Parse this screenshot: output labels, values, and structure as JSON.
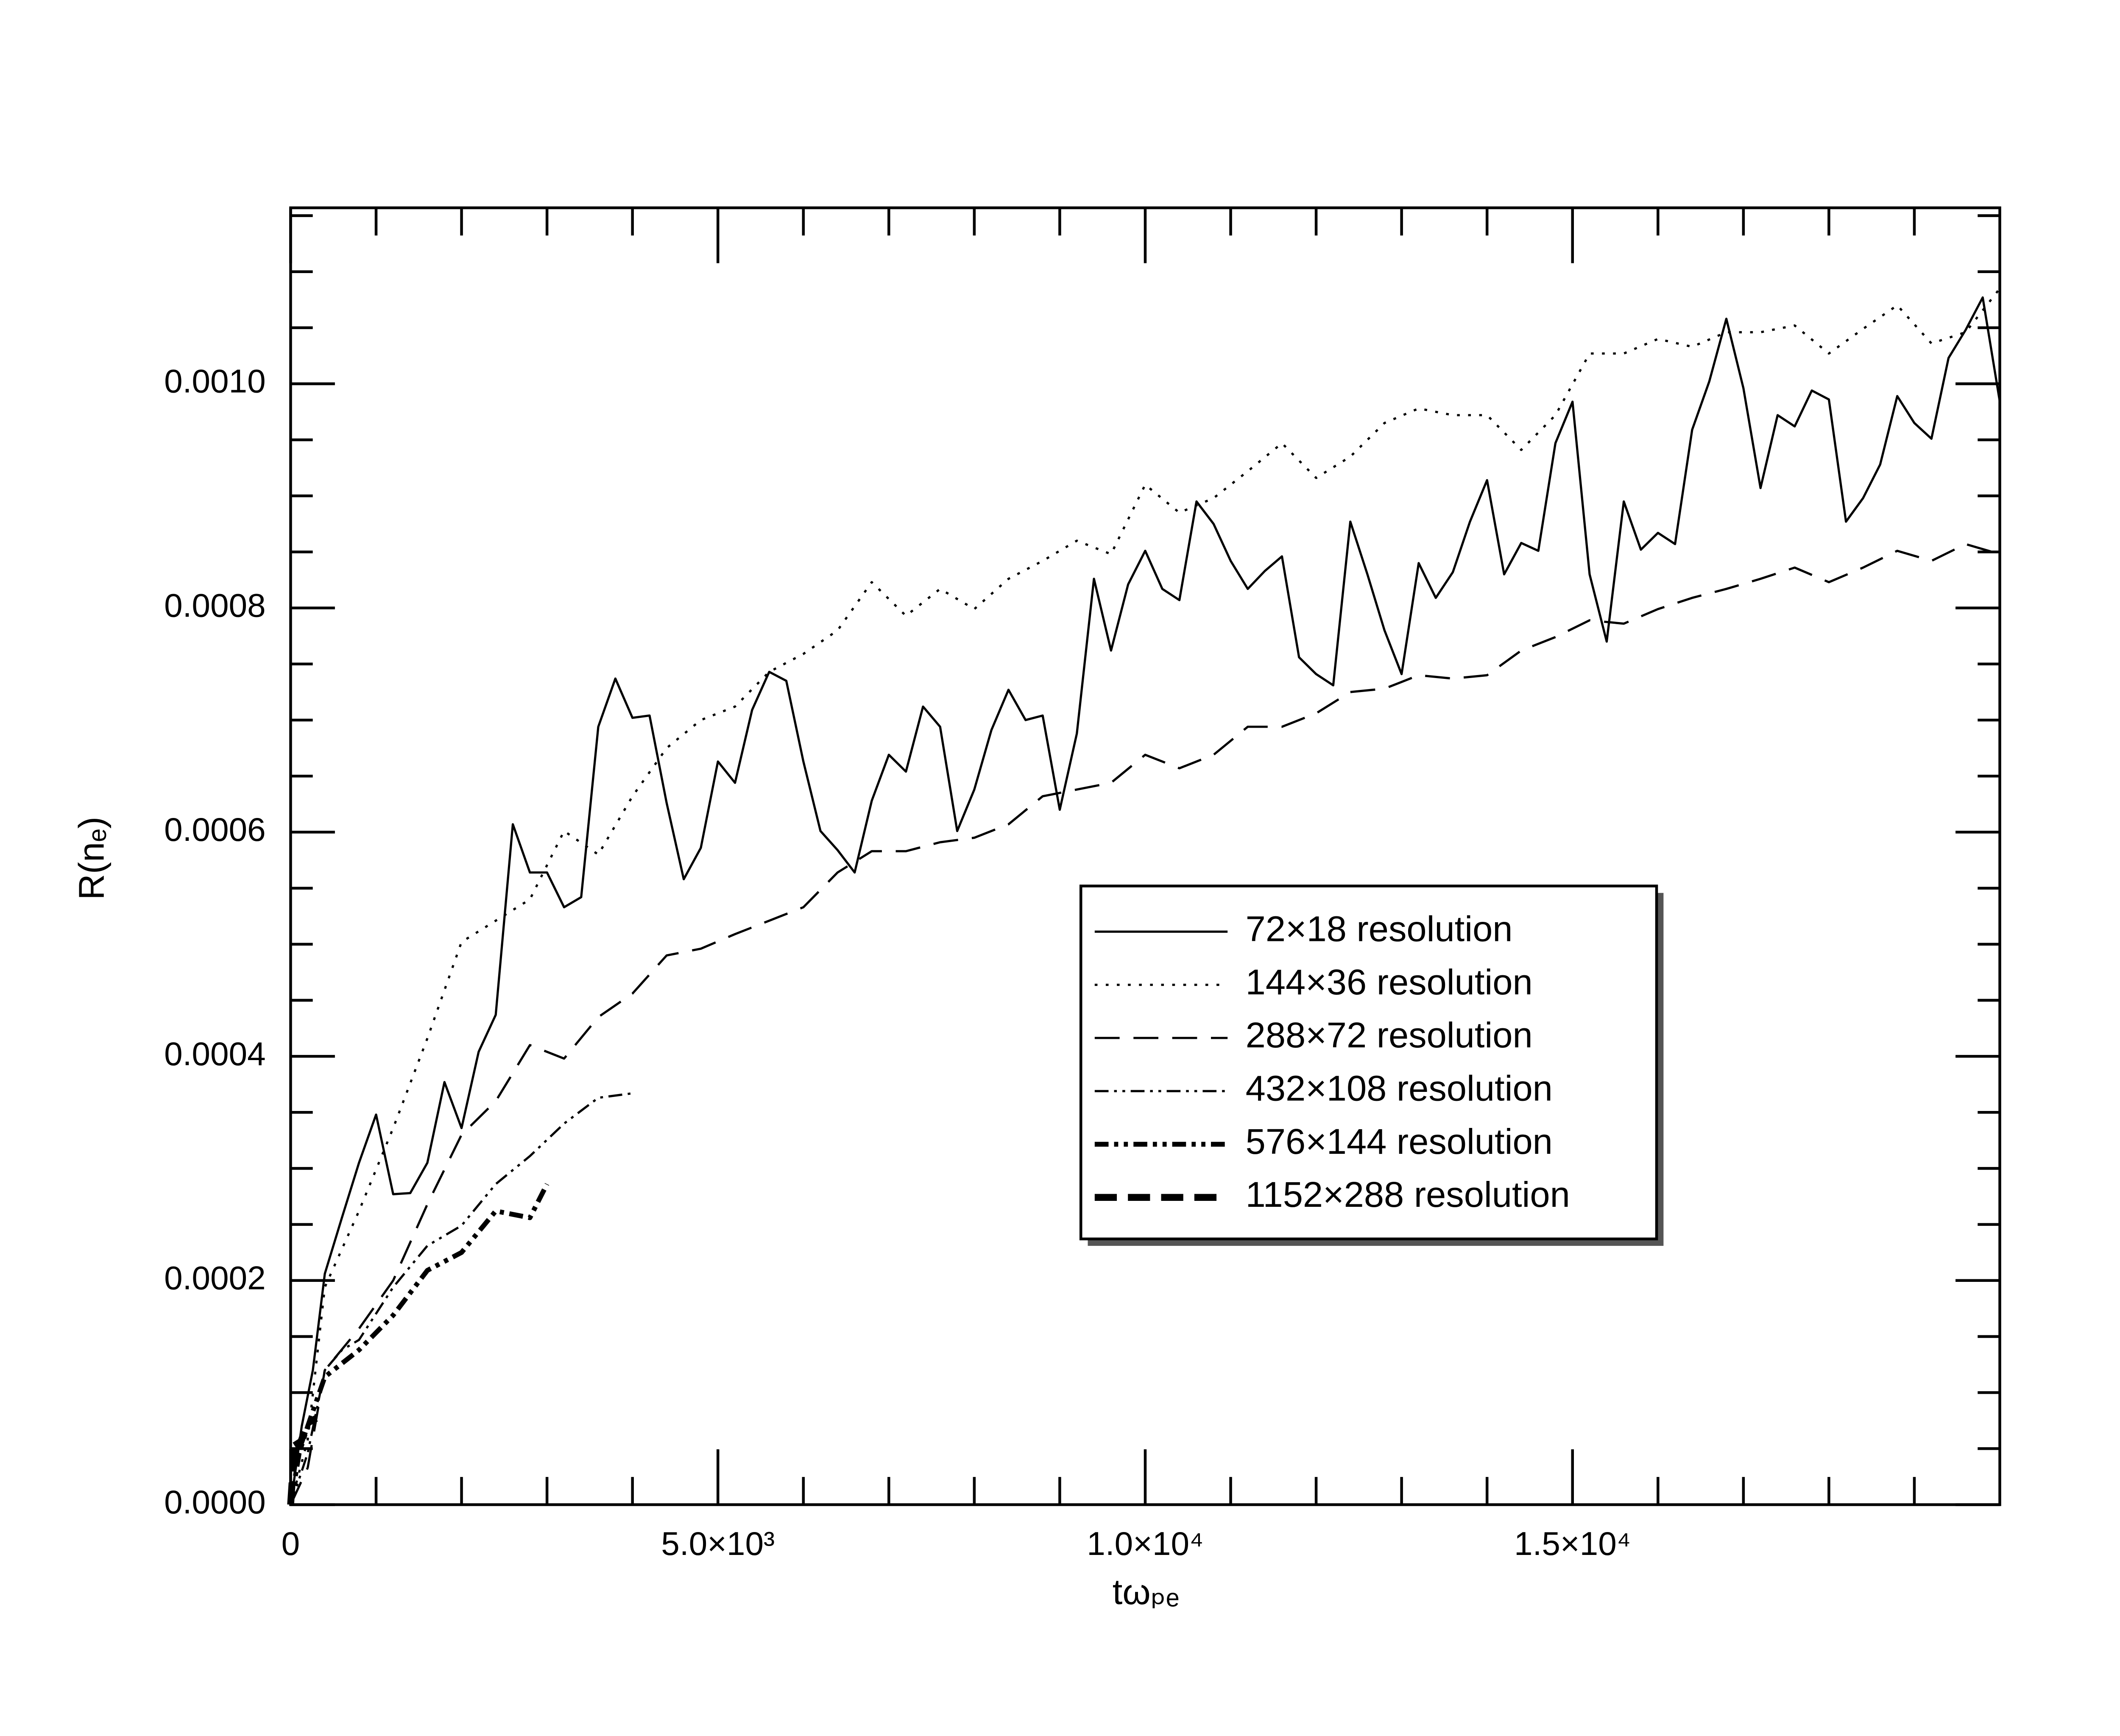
{
  "chart_data": {
    "type": "line",
    "xlabel": "tωₚₑ",
    "ylabel": "R(nₑ)",
    "xlim": [
      0,
      20000
    ],
    "ylim": [
      0,
      0.001157
    ],
    "xticks": [
      {
        "value": 0,
        "label": "0"
      },
      {
        "value": 5000,
        "label": "5.0×10³"
      },
      {
        "value": 10000,
        "label": "1.0×10⁴"
      },
      {
        "value": 15000,
        "label": "1.5×10⁴"
      }
    ],
    "yticks": [
      {
        "value": 0,
        "label": "0.0000"
      },
      {
        "value": 0.0002,
        "label": "0.0002"
      },
      {
        "value": 0.0004,
        "label": "0.0004"
      },
      {
        "value": 0.0006,
        "label": "0.0006"
      },
      {
        "value": 0.0008,
        "label": "0.0008"
      },
      {
        "value": 0.001,
        "label": "0.0010"
      }
    ],
    "xminorticks": [
      1000,
      2000,
      3000,
      4000,
      6000,
      7000,
      8000,
      9000,
      11000,
      12000,
      13000,
      14000,
      16000,
      17000,
      18000,
      19000
    ],
    "yminorticks": [
      5e-05,
      0.0001,
      0.00015,
      0.00025,
      0.0003,
      0.00035,
      0.00045,
      0.0005,
      0.00055,
      0.00065,
      0.0007,
      0.00075,
      0.00085,
      0.0009,
      0.00095,
      0.00105,
      0.0011,
      0.00115
    ],
    "legend_position": "center-right",
    "series": [
      {
        "name": "72×18 resolution",
        "color": "#000000",
        "x": [
          0,
          130,
          260,
          400,
          600,
          800,
          1000,
          1200,
          1400,
          1600,
          1800,
          2000,
          2200,
          2400,
          2600,
          2800,
          3000,
          3200,
          3400,
          3600,
          3800,
          4000,
          4200,
          4400,
          4600,
          4800,
          5000,
          5200,
          5400,
          5600,
          5800,
          6000,
          6200,
          6400,
          6600,
          6800,
          7000,
          7200,
          7400,
          7600,
          7800,
          8000,
          8200,
          8400,
          8600,
          8800,
          9000,
          9200,
          9400,
          9600,
          9800,
          10000,
          10200,
          10400,
          10600,
          10800,
          11000,
          11200,
          11400,
          11600,
          11800,
          12000,
          12200,
          12400,
          12600,
          12800,
          13000,
          13200,
          13400,
          13600,
          13800,
          14000,
          14200,
          14400,
          14600,
          14800,
          15000,
          15200,
          15400,
          15600,
          15800,
          16000,
          16200,
          16400,
          16600,
          16800,
          17000,
          17200,
          17400,
          17600,
          17800,
          18000,
          18200,
          18400,
          18600,
          18800,
          19000,
          19200,
          19400,
          19600,
          19800,
          20000
        ],
        "values": [
          0,
          7e-05,
          0.00012,
          0.000206,
          0.000256,
          0.000305,
          0.000348,
          0.000277,
          0.000278,
          0.000305,
          0.000377,
          0.000336,
          0.000404,
          0.000437,
          0.000607,
          0.000564,
          0.000564,
          0.000533,
          0.000542,
          0.000694,
          0.000737,
          0.000702,
          0.000704,
          0.000626,
          0.000558,
          0.000586,
          0.000663,
          0.000644,
          0.000709,
          0.000743,
          0.000735,
          0.000663,
          0.000601,
          0.000584,
          0.000564,
          0.000628,
          0.000669,
          0.000654,
          0.000712,
          0.000694,
          0.000601,
          0.000638,
          0.000691,
          0.000727,
          0.0007,
          0.000704,
          0.00062,
          0.000688,
          0.000826,
          0.000762,
          0.000821,
          0.000851,
          0.000817,
          0.000807,
          0.000895,
          0.000875,
          0.000842,
          0.000817,
          0.000833,
          0.000846,
          0.000756,
          0.000741,
          0.000731,
          0.000877,
          0.00083,
          0.00078,
          0.000741,
          0.00084,
          0.000809,
          0.000832,
          0.000877,
          0.000914,
          0.00083,
          0.000858,
          0.000851,
          0.000947,
          0.000984,
          0.00083,
          0.00077,
          0.000895,
          0.000852,
          0.000867,
          0.000857,
          0.000959,
          0.001002,
          0.001058,
          0.000996,
          0.000907,
          0.000972,
          0.000962,
          0.000994,
          0.000986,
          0.000877,
          0.000898,
          0.000928,
          0.000989,
          0.000965,
          0.000951,
          0.001023,
          0.001048,
          0.001077,
          0.000984
        ]
      },
      {
        "name": "144×36 resolution",
        "color": "#000000",
        "x": [
          0,
          200,
          400,
          800,
          1200,
          1600,
          2000,
          2400,
          2800,
          3200,
          3600,
          4000,
          4400,
          4800,
          5200,
          5600,
          6000,
          6400,
          6800,
          7200,
          7600,
          8000,
          8400,
          8800,
          9200,
          9600,
          10000,
          10400,
          10800,
          11200,
          11600,
          12000,
          12400,
          12800,
          13200,
          13600,
          14000,
          14400,
          14800,
          15200,
          15600,
          16000,
          16400,
          16800,
          17200,
          17600,
          18000,
          18400,
          18800,
          19200,
          19600,
          20000
        ],
        "values": [
          0,
          5.8e-05,
          0.000194,
          0.000262,
          0.000336,
          0.000416,
          0.000502,
          0.000521,
          0.00054,
          0.000601,
          0.00058,
          0.000632,
          0.000675,
          0.0007,
          0.000712,
          0.000743,
          0.000759,
          0.00078,
          0.000823,
          0.000793,
          0.000817,
          0.000799,
          0.000826,
          0.000842,
          0.00086,
          0.000848,
          0.00091,
          0.000885,
          0.000898,
          0.000922,
          0.000947,
          0.000916,
          0.000935,
          0.000965,
          0.000978,
          0.000972,
          0.000972,
          0.000941,
          0.000972,
          0.001027,
          0.001027,
          0.00104,
          0.001033,
          0.001046,
          0.001046,
          0.001052,
          0.001027,
          0.001049,
          0.00107,
          0.001036,
          0.001046,
          0.001085
        ]
      },
      {
        "name": "288×72 resolution",
        "color": "#000000",
        "x": [
          0,
          200,
          400,
          800,
          1200,
          1600,
          2000,
          2400,
          2800,
          3200,
          3600,
          4000,
          4400,
          4800,
          5200,
          5600,
          6000,
          6400,
          6800,
          7200,
          7600,
          8000,
          8400,
          8800,
          9200,
          9600,
          10000,
          10400,
          10800,
          11200,
          11600,
          12000,
          12400,
          12800,
          13200,
          13600,
          14000,
          14400,
          14800,
          15200,
          15600,
          16000,
          16400,
          16800,
          17200,
          17600,
          18000,
          18400,
          18800,
          19200,
          19600,
          20000
        ],
        "values": [
          0,
          3.3e-05,
          0.00012,
          0.000157,
          0.0002,
          0.000268,
          0.00033,
          0.00036,
          0.00041,
          0.000398,
          0.000435,
          0.000456,
          0.00049,
          0.000496,
          0.000509,
          0.000521,
          0.000533,
          0.000564,
          0.000583,
          0.000583,
          0.000591,
          0.000595,
          0.000607,
          0.000632,
          0.000638,
          0.000644,
          0.000669,
          0.000657,
          0.000669,
          0.000694,
          0.000694,
          0.000706,
          0.000725,
          0.000728,
          0.00074,
          0.000737,
          0.00074,
          0.000762,
          0.000774,
          0.000789,
          0.000786,
          0.000799,
          0.000809,
          0.000817,
          0.000826,
          0.000836,
          0.000823,
          0.000836,
          0.000851,
          0.000842,
          0.000857,
          0.000848
        ]
      },
      {
        "name": "432×108 resolution",
        "color": "#000000",
        "x": [
          0,
          200,
          400,
          600,
          800,
          1200,
          1600,
          2000,
          2400,
          2800,
          3200,
          3600,
          4000
        ],
        "values": [
          0,
          4.6e-05,
          0.00012,
          0.000138,
          0.000147,
          0.000194,
          0.000231,
          0.000249,
          0.000286,
          0.000311,
          0.00034,
          0.000363,
          0.000367
        ]
      },
      {
        "name": "576×144 resolution",
        "color": "#000000",
        "x": [
          0,
          100,
          200,
          400,
          800,
          1200,
          1600,
          2000,
          2400,
          2800,
          3000
        ],
        "values": [
          0,
          4.6e-05,
          7e-05,
          0.000114,
          0.000138,
          0.000169,
          0.000209,
          0.000225,
          0.000262,
          0.000256,
          0.000286
        ]
      },
      {
        "name": "1152×288 resolution",
        "color": "#000000",
        "x": [
          0,
          50,
          100,
          200,
          300
        ],
        "values": [
          0,
          5.8e-05,
          5.2e-05,
          7.3e-05,
          7.7e-05
        ]
      }
    ]
  }
}
